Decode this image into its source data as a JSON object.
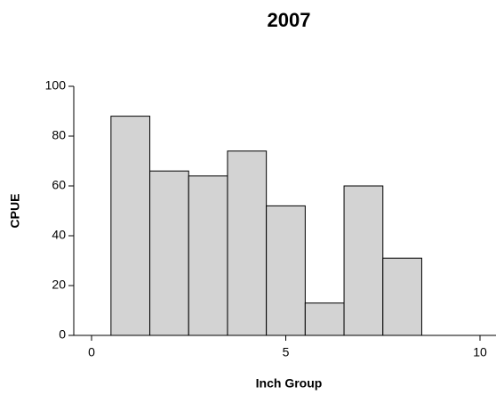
{
  "chart_data": {
    "type": "histogram",
    "title": "2007",
    "x_label": "Inch Group",
    "y_label": "CPUE",
    "bins": [
      0.5,
      1.5,
      2.5,
      3.5,
      4.5,
      5.5,
      6.5,
      7.5,
      8.5
    ],
    "counts": [
      88,
      66,
      64,
      74,
      52,
      13,
      60,
      31
    ],
    "color": "#d3d3d3",
    "xlim": [
      0,
      10
    ],
    "xticks": [
      0,
      5,
      10
    ],
    "ylim": [
      0,
      100
    ],
    "yticks": [
      0,
      20,
      40,
      60,
      80,
      100
    ]
  }
}
